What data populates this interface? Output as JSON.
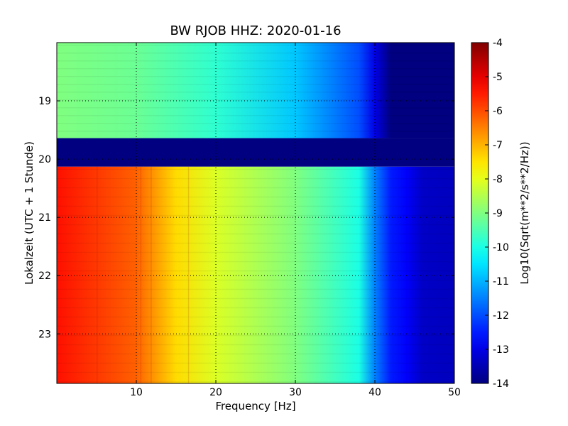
{
  "chart_data": {
    "type": "heatmap",
    "title": "BW RJOB HHZ: 2020-01-16",
    "xlabel": "Frequency [Hz]",
    "ylabel": "Lokalzeit (UTC + 1 Stunde)",
    "colorbar_label": "Log10(Sqrt(m**2/s**2/Hz))",
    "xlim": [
      0,
      50
    ],
    "ylim_hours": [
      18.0,
      23.85
    ],
    "y_inverted": true,
    "x_ticks": [
      "10",
      "20",
      "30",
      "40",
      "50"
    ],
    "x_tick_values": [
      10,
      20,
      30,
      40,
      50
    ],
    "y_ticks": [
      "19",
      "20",
      "21",
      "22",
      "23"
    ],
    "y_tick_values": [
      19,
      20,
      21,
      22,
      23
    ],
    "colorbar_ticks": [
      "-4",
      "-5",
      "-6",
      "-7",
      "-8",
      "-9",
      "-10",
      "-11",
      "-12",
      "-13",
      "-14"
    ],
    "colorbar_tick_values": [
      -4,
      -5,
      -6,
      -7,
      -8,
      -9,
      -10,
      -11,
      -12,
      -13,
      -14
    ],
    "clim": [
      -14,
      -4
    ],
    "colormap": "jet",
    "grid": true,
    "regions": [
      {
        "label": "evening segment",
        "y_start": 18.0,
        "y_end": 19.64,
        "approx_values_by_freq": [
          [
            0,
            -9.0
          ],
          [
            10,
            -9.2
          ],
          [
            20,
            -9.8
          ],
          [
            30,
            -10.8
          ],
          [
            38,
            -12.0
          ],
          [
            40,
            -13.0
          ],
          [
            42,
            -14.0
          ],
          [
            50,
            -14.0
          ]
        ]
      },
      {
        "label": "data gap",
        "y_start": 19.64,
        "y_end": 20.13,
        "value": -14.0
      },
      {
        "label": "night segment",
        "y_start": 20.13,
        "y_end": 23.85,
        "approx_values_by_freq": [
          [
            0,
            -5.4
          ],
          [
            10,
            -6.2
          ],
          [
            15,
            -7.4
          ],
          [
            20,
            -8.1
          ],
          [
            30,
            -9.0
          ],
          [
            38,
            -10.0
          ],
          [
            40,
            -11.5
          ],
          [
            42,
            -12.5
          ],
          [
            44,
            -12.8
          ],
          [
            46,
            -13.3
          ],
          [
            50,
            -13.4
          ]
        ]
      }
    ]
  }
}
